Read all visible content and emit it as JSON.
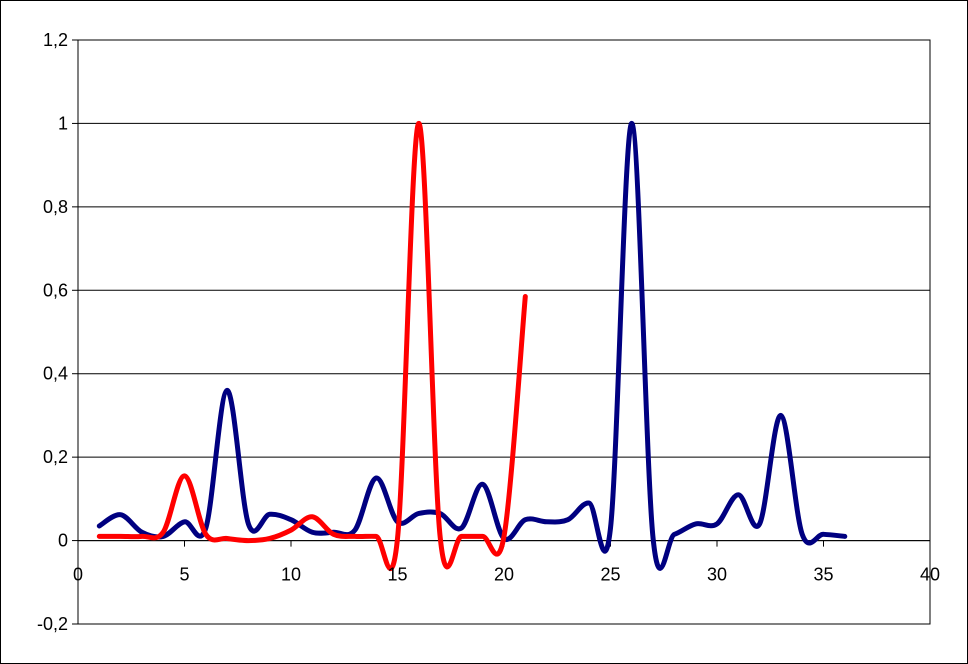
{
  "chart_data": {
    "type": "line",
    "title": "",
    "xlabel": "",
    "ylabel": "",
    "xlim": [
      0,
      40
    ],
    "ylim": [
      -0.2,
      1.2
    ],
    "x_ticks": [
      0,
      5,
      10,
      15,
      20,
      25,
      30,
      35,
      40
    ],
    "y_ticks": [
      -0.2,
      0,
      0.2,
      0.4,
      0.6,
      0.8,
      1,
      1.2
    ],
    "x_tick_labels": [
      "0",
      "5",
      "10",
      "15",
      "20",
      "25",
      "30",
      "35",
      "40"
    ],
    "y_tick_labels": [
      "-0,2",
      "0",
      "0,2",
      "0,4",
      "0,6",
      "0,8",
      "1",
      "1,2"
    ],
    "grid": {
      "horizontal": true,
      "vertical": false
    },
    "legend": "none",
    "colors": {
      "background": "#ffffff",
      "axes": "#000000",
      "gridlines": "#000000"
    },
    "series": [
      {
        "color": "#000080",
        "smooth": true,
        "x": [
          1,
          2,
          3,
          4,
          5,
          6,
          7,
          8,
          9,
          10,
          11,
          12,
          13,
          14,
          15,
          16,
          17,
          18,
          19,
          20,
          21,
          22,
          23,
          24,
          25,
          26,
          27,
          28,
          29,
          30,
          31,
          32,
          33,
          34,
          35,
          36
        ],
        "y": [
          0.035,
          0.062,
          0.02,
          0.01,
          0.045,
          0.03,
          0.36,
          0.04,
          0.063,
          0.05,
          0.02,
          0.02,
          0.025,
          0.15,
          0.045,
          0.065,
          0.065,
          0.03,
          0.135,
          0.005,
          0.05,
          0.045,
          0.05,
          0.09,
          0.03,
          1.0,
          0.005,
          0.015,
          0.04,
          0.04,
          0.11,
          0.04,
          0.3,
          0.015,
          0.015,
          0.01
        ]
      },
      {
        "color": "#ff0000",
        "smooth": true,
        "x": [
          1,
          2,
          3,
          4,
          5,
          6,
          7,
          8,
          9,
          10,
          11,
          12,
          13,
          14,
          15,
          16,
          17,
          18,
          19,
          20,
          21
        ],
        "y": [
          0.01,
          0.01,
          0.01,
          0.02,
          0.155,
          0.015,
          0.005,
          0.0,
          0.005,
          0.025,
          0.057,
          0.015,
          0.01,
          0.01,
          0.005,
          1.0,
          0.01,
          0.01,
          0.01,
          0.01,
          0.585
        ]
      }
    ]
  }
}
